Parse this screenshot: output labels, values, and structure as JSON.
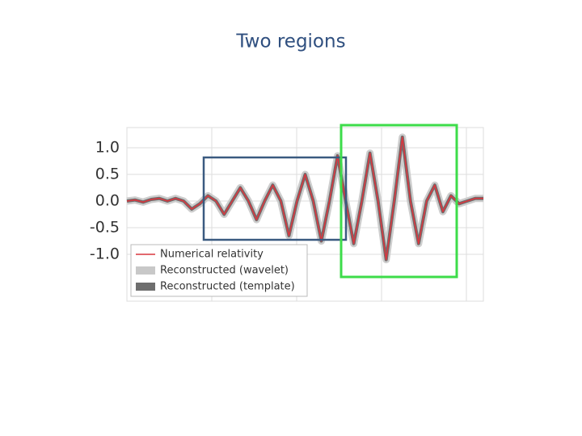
{
  "chart_data": {
    "type": "line",
    "title": "Two regions",
    "categories": [
      null,
      null,
      null,
      null,
      null,
      null,
      null,
      null,
      null,
      null,
      null,
      null,
      null,
      null,
      null,
      null,
      null,
      null,
      null,
      null,
      null,
      null,
      null,
      null,
      null,
      null,
      null,
      null,
      null,
      null,
      null,
      null,
      null,
      null,
      null,
      null,
      null,
      null,
      null,
      null,
      null,
      null,
      null,
      null,
      null
    ],
    "series": [
      {
        "name": "Reconstructed (wavelet)",
        "color": "#c8c8c8",
        "values": [
          0,
          0.02,
          -0.02,
          0.03,
          0.05,
          0,
          0.05,
          0,
          -0.15,
          -0.05,
          0.1,
          0,
          -0.25,
          0,
          0.25,
          0,
          -0.35,
          0,
          0.3,
          0,
          -0.65,
          0,
          0.5,
          0,
          -0.75,
          0,
          0.85,
          0,
          -0.8,
          0,
          0.9,
          0,
          -1.1,
          0,
          1.2,
          0,
          -0.8,
          0,
          0.3,
          -0.2,
          0.1,
          -0.05,
          0,
          0.05,
          0.05
        ]
      },
      {
        "name": "Reconstructed (template)",
        "color": "#6e6e6e",
        "values": [
          0,
          0.02,
          -0.02,
          0.03,
          0.05,
          0,
          0.05,
          0,
          -0.15,
          -0.05,
          0.1,
          0,
          -0.25,
          0,
          0.25,
          0,
          -0.35,
          0,
          0.3,
          0,
          -0.65,
          0,
          0.5,
          0,
          -0.75,
          0,
          0.85,
          0,
          -0.8,
          0,
          0.9,
          0,
          -1.1,
          0,
          1.2,
          0,
          -0.8,
          0,
          0.3,
          -0.2,
          0.1,
          -0.05,
          0,
          0.05,
          0.05
        ]
      },
      {
        "name": "Numerical relativity",
        "color": "#d9363e",
        "values": [
          0,
          0.02,
          -0.02,
          0.03,
          0.05,
          0,
          0.05,
          0,
          -0.15,
          -0.05,
          0.1,
          0,
          -0.25,
          0,
          0.25,
          0,
          -0.35,
          0,
          0.3,
          0,
          -0.65,
          0,
          0.5,
          0,
          -0.75,
          0,
          0.85,
          0,
          -0.8,
          0,
          0.9,
          0,
          -1.1,
          0,
          1.2,
          0,
          -0.8,
          0,
          0.3,
          -0.2,
          0.1,
          -0.05,
          0,
          0.05,
          0.05
        ]
      }
    ],
    "ylim": [
      -1.88,
      1.38
    ],
    "yticks": [
      {
        "value": 1,
        "label": "1.0"
      },
      0.5,
      {
        "value": 0,
        "label": "0.0"
      },
      -0.5,
      {
        "value": -1,
        "label": "-1.0"
      }
    ],
    "grid": true
  }
}
